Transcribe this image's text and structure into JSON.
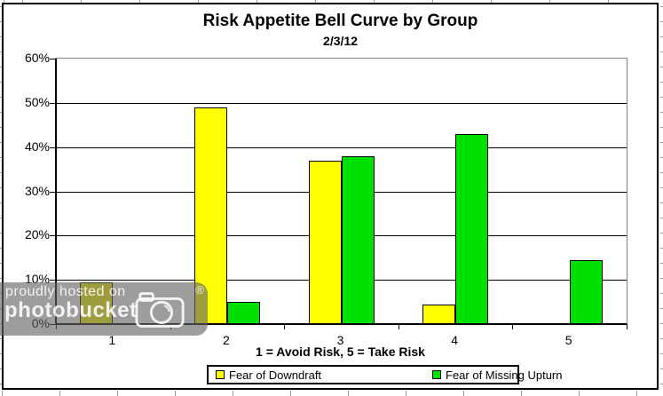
{
  "chart_data": {
    "type": "bar",
    "title": "Risk Appetite Bell Curve by Group",
    "subtitle": "2/3/12",
    "xlabel": "1 = Avoid Risk, 5 = Take Risk",
    "ylabel": "",
    "categories": [
      "1",
      "2",
      "3",
      "4",
      "5"
    ],
    "series": [
      {
        "name": "Fear of Downdraft",
        "color": "#FFFF00",
        "values": [
          9.5,
          49,
          37,
          4.5,
          0
        ]
      },
      {
        "name": "Fear of Missing Upturn",
        "color": "#00E000",
        "values": [
          0,
          5,
          38,
          43,
          14.5
        ]
      }
    ],
    "ylim": [
      0,
      60
    ],
    "ytick_step": 10,
    "y_tick_labels": [
      "60%",
      "50%",
      "40%",
      "30%",
      "20%",
      "10%",
      "0%"
    ],
    "grid": true,
    "legend_position": "bottom"
  },
  "watermark": {
    "line1": "proudly hosted on",
    "line2": "photobucket",
    "registered": "®"
  },
  "colors": {
    "series_1": "#FFFF00",
    "series_2": "#00E000",
    "plot_border": "#808080",
    "watermark_gray": "rgba(100,100,100,0.63)"
  }
}
